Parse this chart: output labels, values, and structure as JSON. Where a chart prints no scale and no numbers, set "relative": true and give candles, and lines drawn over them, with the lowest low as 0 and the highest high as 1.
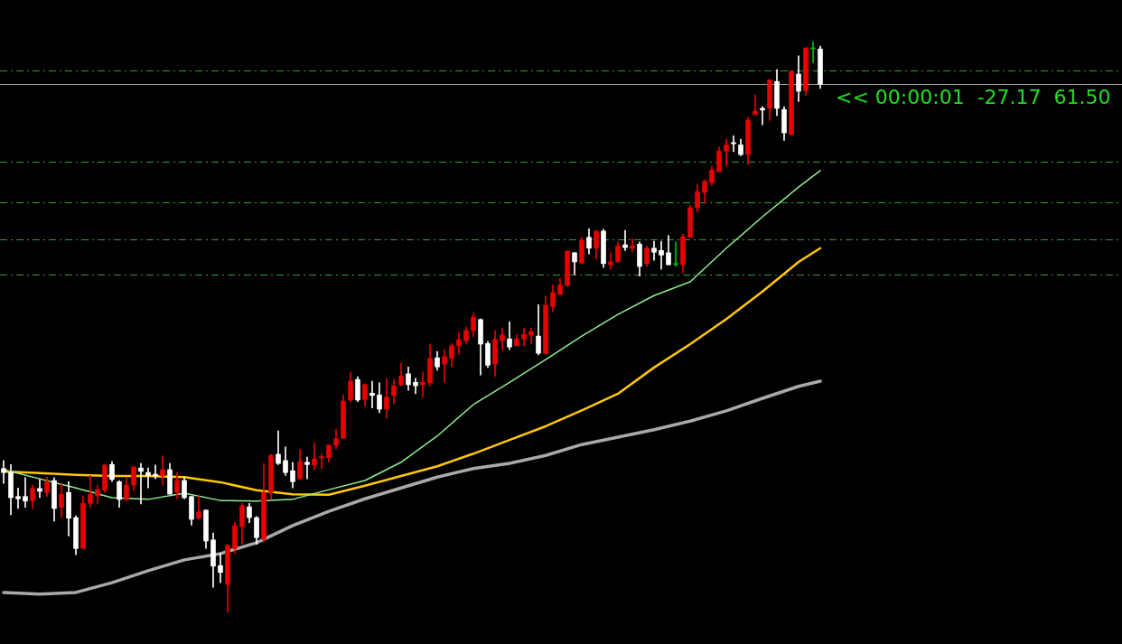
{
  "chart_data": {
    "type": "candlestick",
    "relative": true,
    "categories": [
      null,
      null,
      null,
      null,
      null,
      null,
      null,
      null,
      null,
      null,
      null,
      null,
      null,
      null,
      null,
      null,
      null,
      null,
      null,
      null,
      null,
      null,
      null,
      null,
      null,
      null,
      null,
      null,
      null,
      null,
      null,
      null,
      null,
      null,
      null,
      null,
      null,
      null,
      null,
      null,
      null,
      null,
      null,
      null,
      null,
      null,
      null,
      null,
      null,
      null,
      null,
      null,
      null,
      null,
      null,
      null,
      null,
      null,
      null,
      null,
      null,
      null,
      null,
      null,
      null,
      null,
      null,
      null,
      null,
      null,
      null,
      null,
      null,
      null,
      null,
      null,
      null,
      null,
      null,
      null,
      null,
      null,
      null,
      null,
      null,
      null,
      null,
      null,
      null,
      null,
      null,
      null,
      null,
      null,
      null,
      null,
      null,
      null,
      null,
      null,
      null,
      null,
      null,
      null,
      null,
      null,
      null,
      null,
      null,
      null,
      null,
      null,
      null,
      null
    ],
    "ohlc": [
      [
        0.252,
        0.266,
        0.226,
        0.245
      ],
      [
        0.245,
        0.259,
        0.171,
        0.201
      ],
      [
        0.203,
        0.218,
        0.182,
        0.199
      ],
      [
        0.203,
        0.236,
        0.184,
        0.195
      ],
      [
        0.196,
        0.223,
        0.182,
        0.217
      ],
      [
        0.217,
        0.233,
        0.201,
        0.212
      ],
      [
        0.21,
        0.237,
        0.203,
        0.229
      ],
      [
        0.231,
        0.236,
        0.16,
        0.182
      ],
      [
        0.184,
        0.225,
        0.166,
        0.207
      ],
      [
        0.21,
        0.229,
        0.134,
        0.165
      ],
      [
        0.166,
        0.169,
        0.101,
        0.112
      ],
      [
        0.112,
        0.204,
        0.112,
        0.191
      ],
      [
        0.191,
        0.24,
        0.184,
        0.207
      ],
      [
        0.204,
        0.223,
        0.19,
        0.215
      ],
      [
        0.214,
        0.259,
        0.21,
        0.258
      ],
      [
        0.259,
        0.264,
        0.229,
        0.233
      ],
      [
        0.229,
        0.231,
        0.184,
        0.198
      ],
      [
        0.198,
        0.236,
        0.195,
        0.223
      ],
      [
        0.223,
        0.255,
        0.214,
        0.255
      ],
      [
        0.253,
        0.261,
        0.19,
        0.247
      ],
      [
        0.245,
        0.253,
        0.218,
        0.24
      ],
      [
        0.242,
        0.258,
        0.234,
        0.239
      ],
      [
        0.239,
        0.274,
        0.223,
        0.25
      ],
      [
        0.25,
        0.261,
        0.207,
        0.207
      ],
      [
        0.21,
        0.245,
        0.199,
        0.231
      ],
      [
        0.231,
        0.236,
        0.199,
        0.201
      ],
      [
        0.203,
        0.203,
        0.153,
        0.163
      ],
      [
        0.165,
        0.206,
        0.163,
        0.176
      ],
      [
        0.179,
        0.18,
        0.112,
        0.125
      ],
      [
        0.127,
        0.139,
        0.044,
        0.081
      ],
      [
        0.082,
        0.103,
        0.052,
        0.07
      ],
      [
        0.049,
        0.119,
        0,
        0.117
      ],
      [
        0.112,
        0.158,
        0.103,
        0.152
      ],
      [
        0.15,
        0.191,
        0.12,
        0.187
      ],
      [
        0.185,
        0.191,
        0.157,
        0.166
      ],
      [
        0.166,
        0.168,
        0.119,
        0.131
      ],
      [
        0.128,
        0.261,
        0.123,
        0.21
      ],
      [
        0.21,
        0.277,
        0.198,
        0.275
      ],
      [
        0.277,
        0.318,
        0.259,
        0.261
      ],
      [
        0.266,
        0.29,
        0.24,
        0.245
      ],
      [
        0.248,
        0.263,
        0.218,
        0.229
      ],
      [
        0.234,
        0.286,
        0.234,
        0.264
      ],
      [
        0.263,
        0.272,
        0.234,
        0.259
      ],
      [
        0.258,
        0.297,
        0.25,
        0.269
      ],
      [
        0.271,
        0.278,
        0.252,
        0.272
      ],
      [
        0.271,
        0.293,
        0.263,
        0.293
      ],
      [
        0.293,
        0.321,
        0.286,
        0.304
      ],
      [
        0.305,
        0.381,
        0.305,
        0.37
      ],
      [
        0.372,
        0.421,
        0.369,
        0.405
      ],
      [
        0.408,
        0.413,
        0.369,
        0.372
      ],
      [
        0.373,
        0.4,
        0.361,
        0.399
      ],
      [
        0.384,
        0.405,
        0.358,
        0.38
      ],
      [
        0.381,
        0.402,
        0.35,
        0.356
      ],
      [
        0.356,
        0.41,
        0.34,
        0.377
      ],
      [
        0.38,
        0.408,
        0.365,
        0.397
      ],
      [
        0.399,
        0.437,
        0.397,
        0.414
      ],
      [
        0.418,
        0.43,
        0.389,
        0.399
      ],
      [
        0.403,
        0.41,
        0.383,
        0.397
      ],
      [
        0.399,
        0.421,
        0.377,
        0.403
      ],
      [
        0.402,
        0.47,
        0.397,
        0.445
      ],
      [
        0.446,
        0.457,
        0.424,
        0.43
      ],
      [
        0.435,
        0.46,
        0.403,
        0.448
      ],
      [
        0.445,
        0.471,
        0.43,
        0.467
      ],
      [
        0.467,
        0.49,
        0.452,
        0.478
      ],
      [
        0.476,
        0.5,
        0.471,
        0.494
      ],
      [
        0.494,
        0.524,
        0.483,
        0.517
      ],
      [
        0.513,
        0.514,
        0.416,
        0.47
      ],
      [
        0.471,
        0.475,
        0.429,
        0.433
      ],
      [
        0.435,
        0.494,
        0.414,
        0.478
      ],
      [
        0.476,
        0.498,
        0.46,
        0.486
      ],
      [
        0.479,
        0.509,
        0.46,
        0.465
      ],
      [
        0.467,
        0.487,
        0.467,
        0.479
      ],
      [
        0.479,
        0.498,
        0.467,
        0.487
      ],
      [
        0.486,
        0.498,
        0.471,
        0.492
      ],
      [
        0.484,
        0.539,
        0.451,
        0.454
      ],
      [
        0.454,
        0.554,
        0.452,
        0.538
      ],
      [
        0.536,
        0.574,
        0.527,
        0.56
      ],
      [
        0.557,
        0.585,
        0.557,
        0.573
      ],
      [
        0.573,
        0.633,
        0.571,
        0.633
      ],
      [
        0.63,
        0.631,
        0.592,
        0.614
      ],
      [
        0.612,
        0.657,
        0.611,
        0.652
      ],
      [
        0.657,
        0.672,
        0.628,
        0.638
      ],
      [
        0.638,
        0.668,
        0.619,
        0.668
      ],
      [
        0.668,
        0.671,
        0.604,
        0.611
      ],
      [
        0.609,
        0.63,
        0.601,
        0.614
      ],
      [
        0.614,
        0.649,
        0.614,
        0.642
      ],
      [
        0.644,
        0.669,
        0.634,
        0.639
      ],
      [
        0.638,
        0.655,
        0.631,
        0.642
      ],
      [
        0.645,
        0.649,
        0.589,
        0.606
      ],
      [
        0.611,
        0.642,
        0.606,
        0.638
      ],
      [
        0.638,
        0.65,
        0.617,
        0.631
      ],
      [
        0.634,
        0.65,
        0.601,
        0.626
      ],
      [
        0.63,
        0.66,
        0.609,
        0.609
      ],
      [
        0.611,
        0.649,
        0.606,
        0.611
      ],
      [
        0.609,
        0.663,
        0.595,
        0.658
      ],
      [
        0.657,
        0.713,
        0.657,
        0.709
      ],
      [
        0.709,
        0.75,
        0.701,
        0.737
      ],
      [
        0.736,
        0.758,
        0.717,
        0.755
      ],
      [
        0.753,
        0.782,
        0.748,
        0.775
      ],
      [
        0.772,
        0.815,
        0.772,
        0.808
      ],
      [
        0.808,
        0.829,
        0.783,
        0.819
      ],
      [
        0.823,
        0.835,
        0.807,
        0.821
      ],
      [
        0.819,
        0.829,
        0.8,
        0.802
      ],
      [
        0.802,
        0.867,
        0.785,
        0.862
      ],
      [
        0.872,
        0.906,
        0.872,
        0.878
      ],
      [
        0.883,
        0.886,
        0.854,
        0.88
      ],
      [
        0.883,
        0.933,
        0.862,
        0.933
      ],
      [
        0.93,
        0.951,
        0.87,
        0.883
      ],
      [
        0.881,
        0.886,
        0.827,
        0.84
      ],
      [
        0.837,
        0.948,
        0.837,
        0.948
      ],
      [
        0.943,
        0.975,
        0.895,
        0.913
      ],
      [
        0.914,
        0.989,
        0.906,
        0.989
      ],
      [
        0.989,
        1,
        0.963,
        0.989
      ],
      [
        0.987,
        0.992,
        0.918,
        0.925
      ]
    ],
    "colors": [
      "#ffffff",
      "#ffffff",
      "#ffffff",
      "#ffffff",
      "#e60000",
      "#ffffff",
      "#e60000",
      "#ffffff",
      "#e60000",
      "#ffffff",
      "#ffffff",
      "#e60000",
      "#e60000",
      "#e60000",
      "#e60000",
      "#ffffff",
      "#ffffff",
      "#e60000",
      "#e60000",
      "#ffffff",
      "#ffffff",
      "#ffffff",
      "#e60000",
      "#ffffff",
      "#e60000",
      "#ffffff",
      "#ffffff",
      "#e60000",
      "#ffffff",
      "#ffffff",
      "#ffffff",
      "#e60000",
      "#e60000",
      "#e60000",
      "#ffffff",
      "#ffffff",
      "#e60000",
      "#e60000",
      "#ffffff",
      "#ffffff",
      "#ffffff",
      "#e60000",
      "#ffffff",
      "#e60000",
      "#e60000",
      "#e60000",
      "#e60000",
      "#e60000",
      "#e60000",
      "#ffffff",
      "#e60000",
      "#ffffff",
      "#ffffff",
      "#e60000",
      "#e60000",
      "#e60000",
      "#ffffff",
      "#ffffff",
      "#e60000",
      "#e60000",
      "#ffffff",
      "#e60000",
      "#e60000",
      "#e60000",
      "#e60000",
      "#e60000",
      "#ffffff",
      "#ffffff",
      "#e60000",
      "#e60000",
      "#ffffff",
      "#e60000",
      "#e60000",
      "#e60000",
      "#ffffff",
      "#e60000",
      "#e60000",
      "#e60000",
      "#e60000",
      "#ffffff",
      "#e60000",
      "#ffffff",
      "#e60000",
      "#ffffff",
      "#e60000",
      "#e60000",
      "#ffffff",
      "#e60000",
      "#ffffff",
      "#e60000",
      "#ffffff",
      "#ffffff",
      "#ffffff",
      "#00c000",
      "#e60000",
      "#e60000",
      "#e60000",
      "#e60000",
      "#e60000",
      "#e60000",
      "#e60000",
      "#ffffff",
      "#ffffff",
      "#e60000",
      "#e60000",
      "#ffffff",
      "#e60000",
      "#ffffff",
      "#ffffff",
      "#e60000",
      "#ffffff",
      "#e60000",
      "#00c000",
      "#ffffff"
    ],
    "series": [
      {
        "type": "line",
        "color": "#90ee90",
        "values": [
          0.25,
          null,
          null,
          null,
          null,
          0.234,
          null,
          null,
          null,
          null,
          0.218,
          null,
          null,
          null,
          null,
          0.201,
          null,
          null,
          null,
          null,
          0.198,
          null,
          null,
          null,
          null,
          0.209,
          null,
          null,
          null,
          null,
          0.196,
          null,
          null,
          null,
          null,
          0.195,
          null,
          null,
          null,
          null,
          0.198,
          null,
          null,
          null,
          null,
          0.215,
          null,
          null,
          null,
          null,
          0.231,
          null,
          null,
          null,
          null,
          0.263,
          null,
          null,
          null,
          null,
          0.309,
          null,
          null,
          null,
          null,
          0.364,
          null,
          null,
          null,
          null,
          0.403,
          null,
          null,
          null,
          null,
          0.443,
          null,
          null,
          null,
          null,
          0.484,
          null,
          null,
          null,
          null,
          0.522,
          null,
          null,
          null,
          null,
          0.555,
          null,
          null,
          null,
          null,
          0.579,
          null,
          null,
          null,
          null,
          0.638,
          null,
          null,
          null,
          null,
          0.693,
          null,
          null,
          null,
          null,
          0.745,
          null,
          null,
          0.774
        ]
      },
      {
        "type": "line",
        "color": "#ffc800",
        "values": [
          0.247,
          null,
          null,
          null,
          null,
          0.244,
          null,
          null,
          null,
          null,
          0.241,
          null,
          null,
          null,
          null,
          0.239,
          null,
          null,
          null,
          null,
          0.239,
          null,
          null,
          null,
          null,
          0.237,
          null,
          null,
          null,
          null,
          0.228,
          null,
          null,
          null,
          null,
          0.214,
          null,
          null,
          null,
          null,
          0.207,
          null,
          null,
          null,
          null,
          0.206,
          null,
          null,
          null,
          null,
          0.222,
          null,
          null,
          null,
          null,
          0.239,
          null,
          null,
          null,
          null,
          0.256,
          null,
          null,
          null,
          null,
          0.278,
          null,
          null,
          null,
          null,
          0.302,
          null,
          null,
          null,
          null,
          0.326,
          null,
          null,
          null,
          null,
          0.354,
          null,
          null,
          null,
          null,
          0.383,
          null,
          null,
          null,
          null,
          0.429,
          null,
          null,
          null,
          null,
          0.47,
          null,
          null,
          null,
          null,
          0.514,
          null,
          null,
          null,
          null,
          0.562,
          null,
          null,
          null,
          null,
          0.614,
          null,
          null,
          0.638
        ]
      },
      {
        "type": "line",
        "color": "#a9a9a9",
        "values": [
          0.035,
          null,
          null,
          null,
          null,
          0.032,
          null,
          null,
          null,
          null,
          0.035,
          null,
          null,
          null,
          null,
          0.052,
          null,
          null,
          null,
          null,
          0.073,
          null,
          null,
          null,
          null,
          0.092,
          null,
          null,
          null,
          null,
          0.103,
          null,
          null,
          null,
          null,
          0.122,
          null,
          null,
          null,
          null,
          0.152,
          null,
          null,
          null,
          null,
          0.177,
          null,
          null,
          null,
          null,
          0.199,
          null,
          null,
          null,
          null,
          0.218,
          null,
          null,
          null,
          null,
          0.237,
          null,
          null,
          null,
          null,
          0.252,
          null,
          null,
          null,
          null,
          0.261,
          null,
          null,
          null,
          null,
          0.275,
          null,
          null,
          null,
          null,
          0.294,
          null,
          null,
          null,
          null,
          0.307,
          null,
          null,
          null,
          null,
          0.32,
          null,
          null,
          null,
          null,
          0.335,
          null,
          null,
          null,
          null,
          0.353,
          null,
          null,
          null,
          null,
          0.375,
          null,
          null,
          null,
          null,
          0.396,
          null,
          null,
          0.405
        ]
      }
    ],
    "ref_lines": [
      {
        "axis": "y",
        "value": 0.949,
        "color": "#2ea02e",
        "line_style": "dashed"
      },
      {
        "axis": "y",
        "value": 0.925,
        "color": "#a0a0a0",
        "line_style": "solid"
      },
      {
        "axis": "y",
        "value": 0.79,
        "color": "#2ea02e",
        "line_style": "dashed"
      },
      {
        "axis": "y",
        "value": 0.718,
        "color": "#2ea02e",
        "line_style": "dashed"
      },
      {
        "axis": "y",
        "value": 0.653,
        "color": "#2ea02e",
        "line_style": "dashed"
      },
      {
        "axis": "y",
        "value": 0.592,
        "color": "#2ea02e",
        "line_style": "dashed"
      }
    ],
    "annotations": [
      "<< 00:00:01  -27.17  61.50"
    ]
  }
}
